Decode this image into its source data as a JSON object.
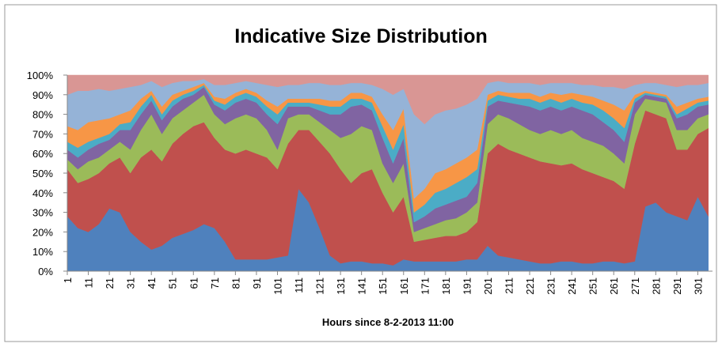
{
  "chart_data": {
    "type": "stacked-area",
    "title": "Indicative Size Distribution",
    "x_label": "Hours since 8-2-2013 11:00",
    "x": [
      1,
      6,
      11,
      16,
      21,
      26,
      31,
      36,
      41,
      46,
      51,
      56,
      61,
      66,
      71,
      76,
      81,
      86,
      91,
      96,
      101,
      106,
      111,
      116,
      121,
      126,
      131,
      136,
      141,
      146,
      151,
      156,
      161,
      166,
      171,
      176,
      181,
      186,
      191,
      196,
      201,
      206,
      211,
      216,
      221,
      226,
      231,
      236,
      241,
      246,
      251,
      256,
      261,
      266,
      271,
      276,
      281,
      286,
      291,
      296,
      301,
      306
    ],
    "xlim": [
      1,
      308
    ],
    "xticks": [
      1,
      11,
      21,
      31,
      41,
      51,
      61,
      71,
      81,
      91,
      101,
      111,
      121,
      131,
      141,
      151,
      161,
      171,
      181,
      191,
      201,
      211,
      221,
      231,
      241,
      251,
      261,
      271,
      281,
      291,
      301
    ],
    "ylim": [
      0,
      100
    ],
    "yticks": [
      {
        "value": 0,
        "label": "0%"
      },
      {
        "value": 10,
        "label": "10%"
      },
      {
        "value": 20,
        "label": "20%"
      },
      {
        "value": 30,
        "label": "30%"
      },
      {
        "value": 40,
        "label": "40%"
      },
      {
        "value": 50,
        "label": "50%"
      },
      {
        "value": 60,
        "label": "60%"
      },
      {
        "value": 70,
        "label": "70%"
      },
      {
        "value": 80,
        "label": "80%"
      },
      {
        "value": 90,
        "label": "90%"
      },
      {
        "value": 100,
        "label": "100%"
      }
    ],
    "series": [
      {
        "color": "#4f81bd",
        "values": [
          28,
          22,
          20,
          24,
          32,
          30,
          20,
          15,
          11,
          13,
          17,
          19,
          21,
          24,
          22,
          15,
          6,
          6,
          6,
          6,
          7,
          8,
          42,
          35,
          22,
          8,
          4,
          5,
          5,
          4,
          4,
          3,
          6,
          5,
          5,
          5,
          5,
          5,
          6,
          6,
          13,
          8,
          7,
          6,
          5,
          4,
          4,
          5,
          5,
          4,
          4,
          5,
          5,
          4,
          5,
          33,
          35,
          30,
          28,
          26,
          38,
          28
        ]
      },
      {
        "color": "#c0504d",
        "values": [
          24,
          23,
          27,
          26,
          23,
          28,
          30,
          43,
          51,
          43,
          48,
          51,
          53,
          52,
          46,
          47,
          54,
          56,
          54,
          52,
          45,
          57,
          30,
          37,
          44,
          52,
          48,
          40,
          45,
          48,
          36,
          27,
          32,
          10,
          11,
          12,
          13,
          13,
          14,
          19,
          47,
          57,
          55,
          54,
          53,
          52,
          51,
          49,
          50,
          48,
          46,
          43,
          41,
          38,
          60,
          49,
          45,
          48,
          34,
          36,
          32,
          45
        ]
      },
      {
        "color": "#9bbb59",
        "values": [
          5,
          7,
          9,
          8,
          7,
          8,
          12,
          14,
          18,
          14,
          13,
          12,
          12,
          14,
          12,
          13,
          18,
          18,
          18,
          14,
          10,
          13,
          8,
          8,
          10,
          12,
          16,
          25,
          24,
          20,
          15,
          15,
          17,
          5,
          6,
          7,
          8,
          9,
          10,
          10,
          15,
          15,
          16,
          15,
          14,
          14,
          17,
          16,
          17,
          16,
          16,
          16,
          14,
          13,
          15,
          6,
          7,
          8,
          10,
          10,
          8,
          7
        ]
      },
      {
        "color": "#8064a2",
        "values": [
          5,
          6,
          6,
          7,
          5,
          6,
          10,
          8,
          7,
          7,
          6,
          6,
          4,
          4,
          5,
          7,
          8,
          8,
          8,
          8,
          13,
          6,
          4,
          4,
          6,
          8,
          12,
          14,
          11,
          10,
          13,
          10,
          13,
          5,
          6,
          8,
          8,
          9,
          8,
          10,
          9,
          7,
          8,
          10,
          12,
          12,
          12,
          12,
          12,
          14,
          14,
          12,
          12,
          11,
          6,
          2,
          2,
          2,
          6,
          8,
          6,
          5
        ]
      },
      {
        "color": "#4bacc6",
        "values": [
          4,
          5,
          4,
          3,
          3,
          3,
          4,
          4,
          3,
          3,
          3,
          2,
          2,
          1,
          2,
          3,
          3,
          3,
          3,
          4,
          5,
          2,
          2,
          2,
          3,
          4,
          4,
          4,
          3,
          4,
          6,
          7,
          7,
          5,
          6,
          8,
          8,
          9,
          10,
          7,
          3,
          3,
          3,
          3,
          4,
          4,
          4,
          4,
          4,
          4,
          5,
          6,
          6,
          7,
          2,
          1,
          1,
          1,
          2,
          3,
          2,
          2
        ]
      },
      {
        "color": "#f79646",
        "values": [
          8,
          9,
          10,
          9,
          8,
          5,
          6,
          4,
          2,
          4,
          3,
          2,
          2,
          1,
          2,
          3,
          2,
          2,
          2,
          3,
          4,
          2,
          2,
          2,
          3,
          3,
          3,
          3,
          3,
          3,
          6,
          10,
          8,
          7,
          8,
          10,
          10,
          10,
          10,
          10,
          3,
          2,
          2,
          3,
          3,
          3,
          3,
          4,
          3,
          4,
          4,
          5,
          7,
          9,
          2,
          1,
          1,
          1,
          4,
          3,
          2,
          2
        ]
      },
      {
        "color": "#95b3d7",
        "values": [
          16,
          20,
          16,
          16,
          14,
          13,
          12,
          7,
          5,
          10,
          6,
          5,
          3,
          2,
          6,
          7,
          5,
          4,
          5,
          8,
          10,
          7,
          7,
          8,
          8,
          8,
          8,
          5,
          5,
          6,
          13,
          18,
          10,
          43,
          33,
          30,
          30,
          28,
          27,
          26,
          6,
          5,
          5,
          5,
          5,
          6,
          5,
          6,
          5,
          5,
          6,
          7,
          9,
          11,
          5,
          4,
          5,
          5,
          10,
          9,
          7,
          7
        ]
      },
      {
        "color": "#d99694",
        "values": [
          10,
          8,
          8,
          7,
          8,
          7,
          6,
          5,
          3,
          6,
          4,
          3,
          3,
          2,
          5,
          5,
          4,
          3,
          4,
          5,
          6,
          5,
          5,
          4,
          4,
          5,
          5,
          4,
          4,
          5,
          7,
          10,
          7,
          20,
          25,
          20,
          18,
          17,
          15,
          12,
          4,
          3,
          4,
          4,
          4,
          5,
          4,
          4,
          4,
          5,
          5,
          6,
          6,
          7,
          5,
          4,
          4,
          5,
          6,
          5,
          5,
          4
        ]
      }
    ]
  }
}
